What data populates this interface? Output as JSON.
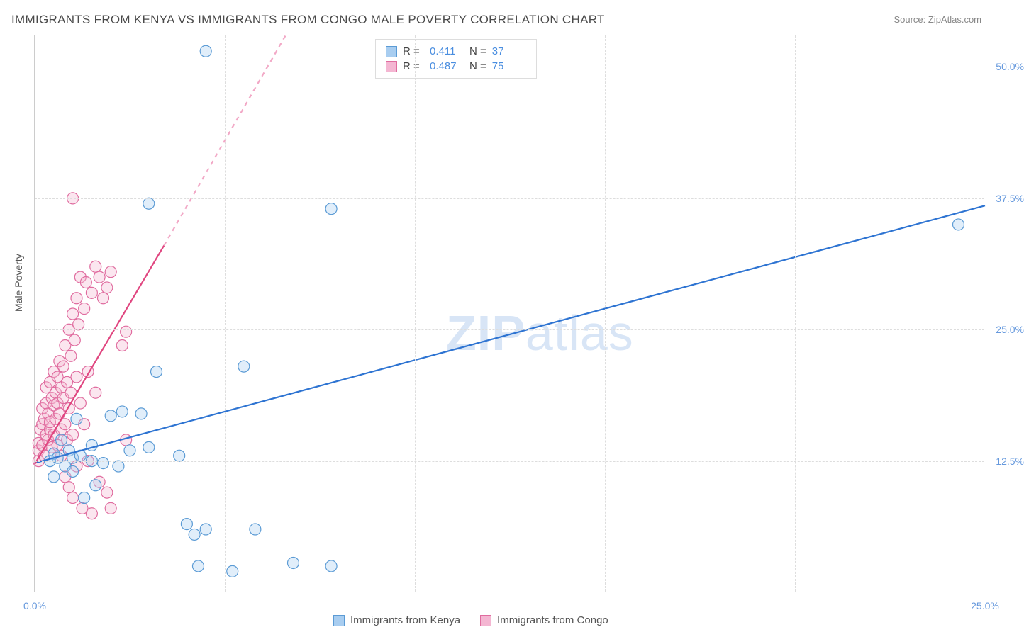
{
  "title": "IMMIGRANTS FROM KENYA VS IMMIGRANTS FROM CONGO MALE POVERTY CORRELATION CHART",
  "source": "Source: ZipAtlas.com",
  "y_axis_label": "Male Poverty",
  "watermark": "ZIPatlas",
  "chart": {
    "type": "scatter",
    "xlim": [
      0,
      25
    ],
    "ylim": [
      0,
      53
    ],
    "background_color": "#ffffff",
    "grid_color": "#dddddd",
    "axis_color": "#cccccc",
    "tick_label_color": "#6699dd",
    "y_ticks": [
      {
        "value": 12.5,
        "label": "12.5%"
      },
      {
        "value": 25.0,
        "label": "25.0%"
      },
      {
        "value": 37.5,
        "label": "37.5%"
      },
      {
        "value": 50.0,
        "label": "50.0%"
      }
    ],
    "x_ticks": [
      {
        "value": 0,
        "label": "0.0%"
      },
      {
        "value": 25,
        "label": "25.0%"
      }
    ],
    "x_grid_values": [
      5,
      10,
      15,
      20
    ],
    "marker_radius": 8,
    "marker_fill_opacity": 0.35,
    "marker_stroke_width": 1.2,
    "trendline_width": 2.2
  },
  "series_a": {
    "name": "Immigrants from Kenya",
    "color": "#5b9bd5",
    "fill": "#a8cdf0",
    "r_value": "0.411",
    "n_value": "37",
    "trendline": {
      "x1": 0,
      "y1": 12.3,
      "x2": 25,
      "y2": 36.8,
      "dash": false
    },
    "points": [
      [
        0.4,
        12.5
      ],
      [
        0.5,
        13.2
      ],
      [
        0.5,
        11.0
      ],
      [
        0.6,
        12.8
      ],
      [
        0.7,
        14.5
      ],
      [
        0.8,
        12.0
      ],
      [
        0.9,
        13.5
      ],
      [
        1.0,
        11.5
      ],
      [
        1.0,
        12.8
      ],
      [
        1.1,
        16.5
      ],
      [
        1.2,
        13.0
      ],
      [
        1.3,
        9.0
      ],
      [
        1.5,
        12.5
      ],
      [
        1.5,
        14.0
      ],
      [
        1.6,
        10.2
      ],
      [
        1.8,
        12.3
      ],
      [
        2.0,
        16.8
      ],
      [
        2.2,
        12.0
      ],
      [
        2.3,
        17.2
      ],
      [
        2.5,
        13.5
      ],
      [
        2.8,
        17.0
      ],
      [
        3.0,
        13.8
      ],
      [
        3.2,
        21.0
      ],
      [
        3.0,
        37.0
      ],
      [
        3.8,
        13.0
      ],
      [
        4.0,
        6.5
      ],
      [
        4.2,
        5.5
      ],
      [
        4.3,
        2.5
      ],
      [
        4.5,
        6.0
      ],
      [
        4.5,
        51.5
      ],
      [
        5.2,
        2.0
      ],
      [
        5.5,
        21.5
      ],
      [
        5.8,
        6.0
      ],
      [
        6.8,
        2.8
      ],
      [
        7.8,
        36.5
      ],
      [
        7.8,
        2.5
      ],
      [
        24.3,
        35.0
      ]
    ]
  },
  "series_b": {
    "name": "Immigrants from Congo",
    "color": "#e06c9f",
    "fill": "#f4b6d2",
    "r_value": "0.487",
    "n_value": "75",
    "trendline_solid": {
      "x1": 0,
      "y1": 12.2,
      "x2": 3.4,
      "y2": 33.0
    },
    "trendline_dash": {
      "x1": 3.4,
      "y1": 33.0,
      "x2": 6.6,
      "y2": 53.0
    },
    "points": [
      [
        0.1,
        12.5
      ],
      [
        0.1,
        13.5
      ],
      [
        0.1,
        14.2
      ],
      [
        0.15,
        15.5
      ],
      [
        0.2,
        16.0
      ],
      [
        0.2,
        14.0
      ],
      [
        0.2,
        17.5
      ],
      [
        0.25,
        13.0
      ],
      [
        0.25,
        16.5
      ],
      [
        0.3,
        15.0
      ],
      [
        0.3,
        18.0
      ],
      [
        0.3,
        19.5
      ],
      [
        0.35,
        14.5
      ],
      [
        0.35,
        17.0
      ],
      [
        0.4,
        15.5
      ],
      [
        0.4,
        20.0
      ],
      [
        0.4,
        16.2
      ],
      [
        0.45,
        18.5
      ],
      [
        0.45,
        13.8
      ],
      [
        0.5,
        17.8
      ],
      [
        0.5,
        21.0
      ],
      [
        0.5,
        15.0
      ],
      [
        0.55,
        19.0
      ],
      [
        0.55,
        16.5
      ],
      [
        0.6,
        20.5
      ],
      [
        0.6,
        14.0
      ],
      [
        0.6,
        18.0
      ],
      [
        0.65,
        22.0
      ],
      [
        0.65,
        17.0
      ],
      [
        0.7,
        19.5
      ],
      [
        0.7,
        15.5
      ],
      [
        0.7,
        13.0
      ],
      [
        0.75,
        21.5
      ],
      [
        0.75,
        18.5
      ],
      [
        0.8,
        23.5
      ],
      [
        0.8,
        16.0
      ],
      [
        0.8,
        11.0
      ],
      [
        0.85,
        20.0
      ],
      [
        0.85,
        14.5
      ],
      [
        0.9,
        25.0
      ],
      [
        0.9,
        17.5
      ],
      [
        0.9,
        10.0
      ],
      [
        0.95,
        22.5
      ],
      [
        0.95,
        19.0
      ],
      [
        1.0,
        26.5
      ],
      [
        1.0,
        15.0
      ],
      [
        1.0,
        9.0
      ],
      [
        1.05,
        24.0
      ],
      [
        1.1,
        20.5
      ],
      [
        1.1,
        28.0
      ],
      [
        1.1,
        12.0
      ],
      [
        1.15,
        25.5
      ],
      [
        1.2,
        18.0
      ],
      [
        1.2,
        30.0
      ],
      [
        1.25,
        8.0
      ],
      [
        1.3,
        27.0
      ],
      [
        1.3,
        16.0
      ],
      [
        1.35,
        29.5
      ],
      [
        1.4,
        21.0
      ],
      [
        1.4,
        12.5
      ],
      [
        1.5,
        28.5
      ],
      [
        1.5,
        7.5
      ],
      [
        1.6,
        31.0
      ],
      [
        1.6,
        19.0
      ],
      [
        1.7,
        30.0
      ],
      [
        1.7,
        10.5
      ],
      [
        1.8,
        28.0
      ],
      [
        1.9,
        29.0
      ],
      [
        1.9,
        9.5
      ],
      [
        2.0,
        30.5
      ],
      [
        2.0,
        8.0
      ],
      [
        1.0,
        37.5
      ],
      [
        2.3,
        23.5
      ],
      [
        2.4,
        14.5
      ],
      [
        2.4,
        24.8
      ]
    ]
  },
  "legend": {
    "r_label": "R =",
    "n_label": "N ="
  }
}
